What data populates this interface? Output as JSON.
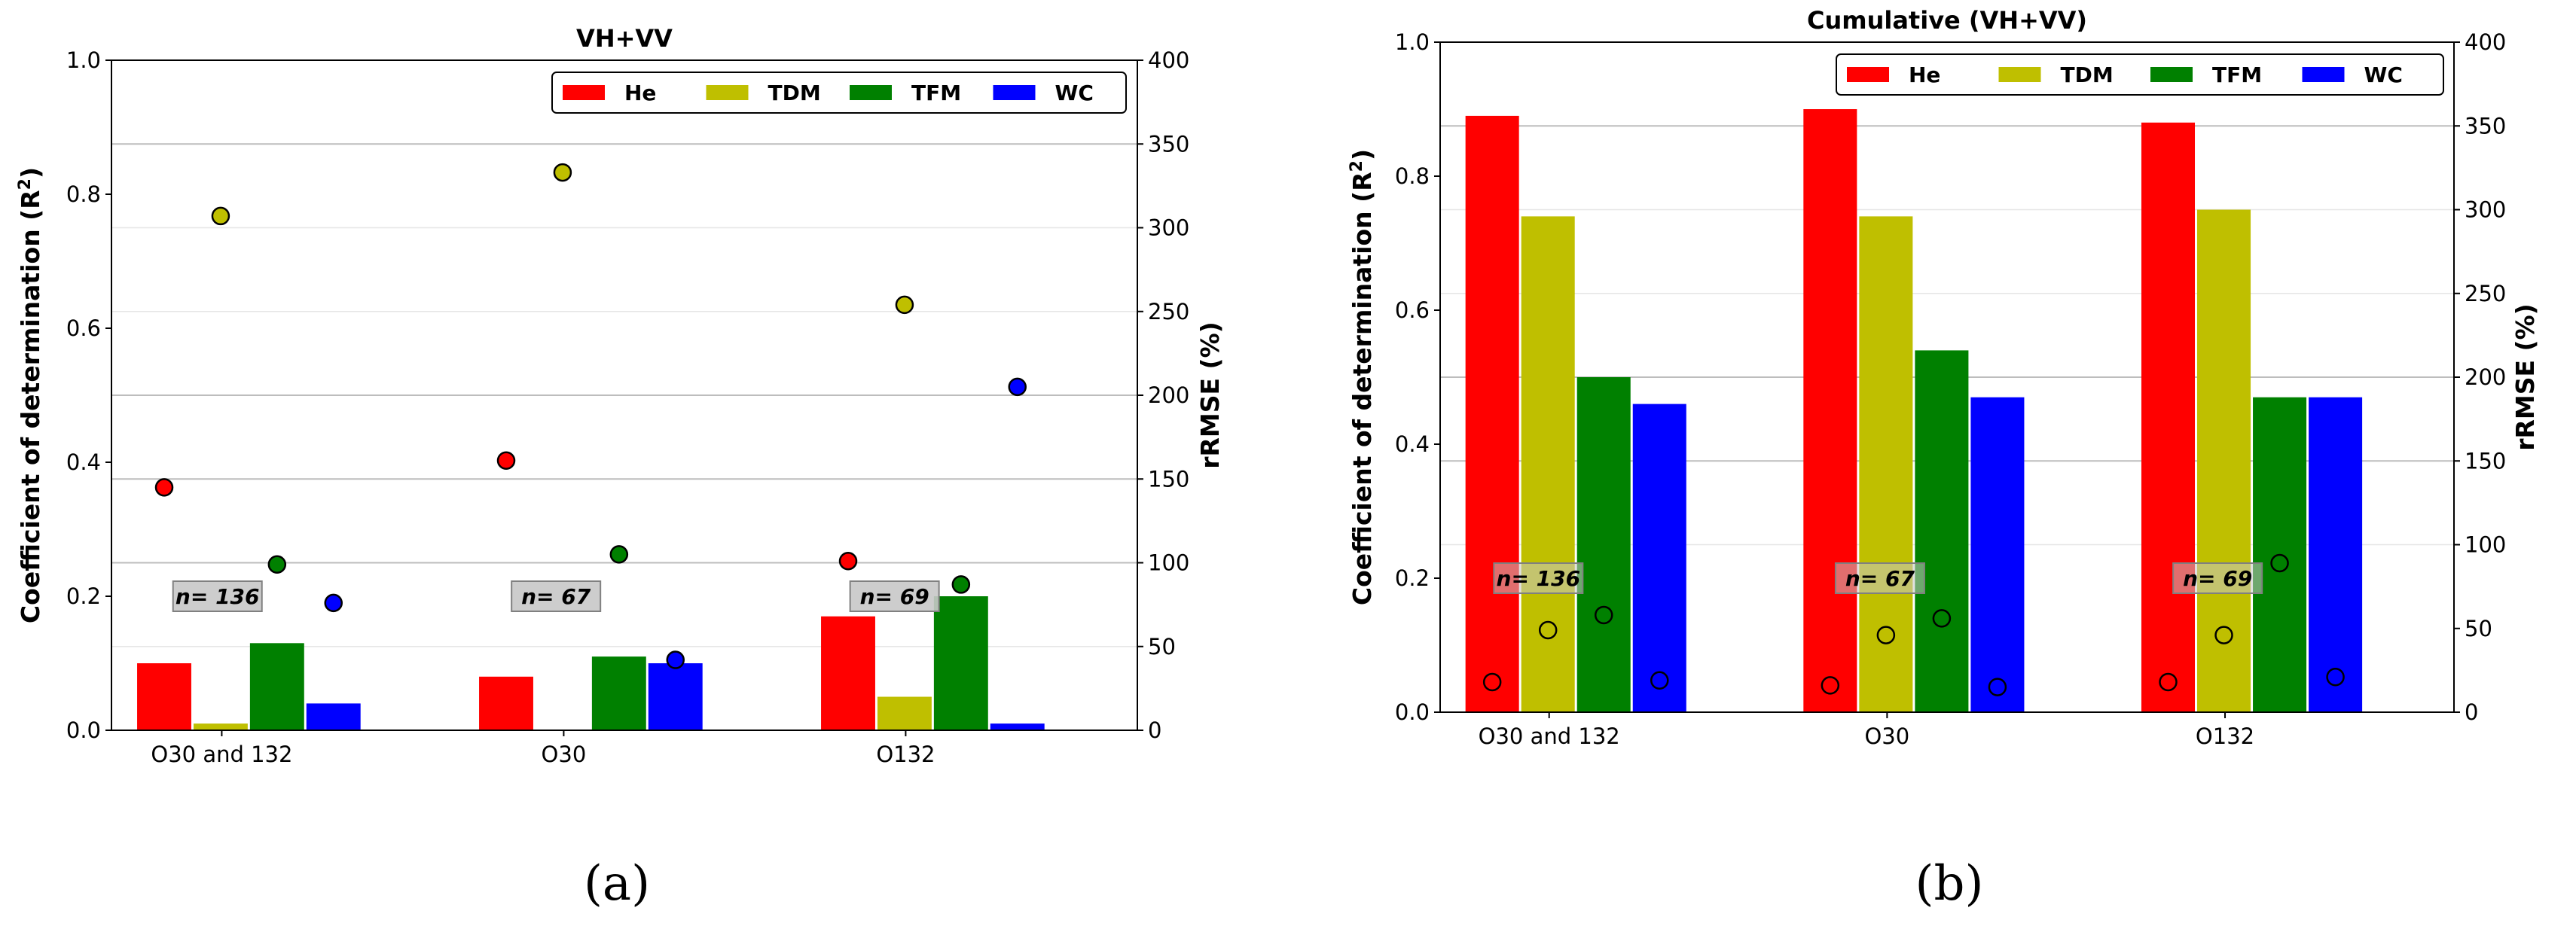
{
  "colors": {
    "He": "#ff0000",
    "TDM": "#bfbf00",
    "TFM": "#008000",
    "WC": "#0000ff"
  },
  "legend": [
    "He",
    "TDM",
    "TFM",
    "WC"
  ],
  "chart_data": [
    {
      "type": "bar",
      "panel_label": "(a)",
      "title": "VH+VV",
      "xlabel": "",
      "ylabel_main": "Coefficient of determination (R",
      "ylabel_sup": "2",
      "ylabel_close": ")",
      "y2label": "rRMSE (%)",
      "ylim": [
        0,
        1.0
      ],
      "y2lim": [
        0,
        400
      ],
      "yticks": [
        "0.0",
        "0.2",
        "0.4",
        "0.6",
        "0.8",
        "1.0"
      ],
      "y2ticks": [
        "0",
        "50",
        "100",
        "150",
        "200",
        "250",
        "300",
        "350",
        "400"
      ],
      "categories": [
        "O30 and 132",
        "O30",
        "O132"
      ],
      "annotations": [
        "n= 136",
        "n= 67",
        "n= 69"
      ],
      "series": [
        {
          "name": "He",
          "r2": [
            0.1,
            0.08,
            0.17
          ],
          "rrmse": [
            145,
            161,
            101
          ]
        },
        {
          "name": "TDM",
          "r2": [
            0.01,
            0.0,
            0.05
          ],
          "rrmse": [
            307,
            333,
            254
          ]
        },
        {
          "name": "TFM",
          "r2": [
            0.13,
            0.11,
            0.2
          ],
          "rrmse": [
            99,
            105,
            87
          ]
        },
        {
          "name": "WC",
          "r2": [
            0.04,
            0.1,
            0.01
          ],
          "rrmse": [
            76,
            42,
            205
          ]
        }
      ]
    },
    {
      "type": "bar",
      "panel_label": "(b)",
      "title": "Cumulative (VH+VV)",
      "xlabel": "",
      "ylabel_main": "Coefficient of determination (R",
      "ylabel_sup": "2",
      "ylabel_close": ")",
      "y2label": "rRMSE (%)",
      "ylim": [
        0,
        1.0
      ],
      "y2lim": [
        0,
        400
      ],
      "yticks": [
        "0.0",
        "0.2",
        "0.4",
        "0.6",
        "0.8",
        "1.0"
      ],
      "y2ticks": [
        "0",
        "50",
        "100",
        "150",
        "200",
        "250",
        "300",
        "350",
        "400"
      ],
      "categories": [
        "O30 and 132",
        "O30",
        "O132"
      ],
      "annotations": [
        "n= 136",
        "n= 67",
        "n= 69"
      ],
      "series": [
        {
          "name": "He",
          "r2": [
            0.89,
            0.9,
            0.88
          ],
          "rrmse": [
            18,
            16,
            18
          ]
        },
        {
          "name": "TDM",
          "r2": [
            0.74,
            0.74,
            0.75
          ],
          "rrmse": [
            49,
            46,
            46
          ]
        },
        {
          "name": "TFM",
          "r2": [
            0.5,
            0.54,
            0.47
          ],
          "rrmse": [
            58,
            56,
            89
          ]
        },
        {
          "name": "WC",
          "r2": [
            0.46,
            0.47,
            0.47
          ],
          "rrmse": [
            19,
            15,
            21
          ]
        }
      ]
    }
  ]
}
